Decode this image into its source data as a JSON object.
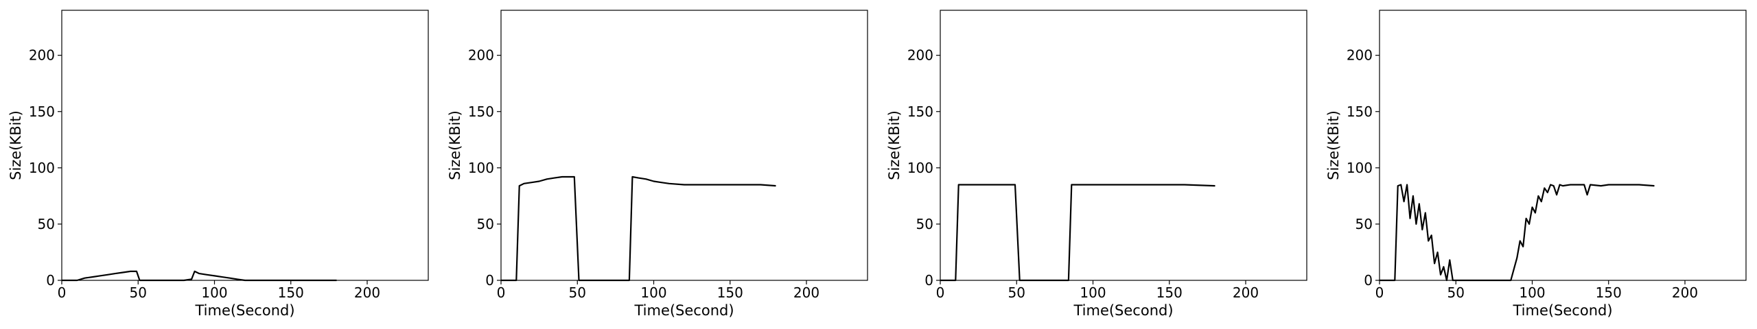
{
  "chart_data": [
    {
      "type": "line",
      "xlabel": "Time(Second)",
      "ylabel": "Size(KBit)",
      "xlim": [
        0,
        240
      ],
      "ylim": [
        0,
        240
      ],
      "xticks": [
        "0",
        "50",
        "100",
        "150",
        "200"
      ],
      "yticks": [
        "0",
        "50",
        "100",
        "150",
        "200"
      ],
      "grid": false,
      "series": [
        {
          "color": "#000000",
          "points": [
            [
              0,
              0
            ],
            [
              10,
              0
            ],
            [
              15,
              2
            ],
            [
              20,
              3
            ],
            [
              25,
              4
            ],
            [
              30,
              5
            ],
            [
              35,
              6
            ],
            [
              40,
              7
            ],
            [
              45,
              8
            ],
            [
              49,
              8
            ],
            [
              51,
              0
            ],
            [
              60,
              0
            ],
            [
              70,
              0
            ],
            [
              80,
              0
            ],
            [
              85,
              1
            ],
            [
              87,
              8
            ],
            [
              90,
              6
            ],
            [
              95,
              5
            ],
            [
              100,
              4
            ],
            [
              105,
              3
            ],
            [
              110,
              2
            ],
            [
              115,
              1
            ],
            [
              120,
              0
            ],
            [
              150,
              0
            ],
            [
              180,
              0
            ]
          ]
        }
      ]
    },
    {
      "type": "line",
      "xlabel": "Time(Second)",
      "ylabel": "Size(KBit)",
      "xlim": [
        0,
        240
      ],
      "ylim": [
        0,
        240
      ],
      "xticks": [
        "0",
        "50",
        "100",
        "150",
        "200"
      ],
      "yticks": [
        "0",
        "50",
        "100",
        "150",
        "200"
      ],
      "grid": false,
      "series": [
        {
          "color": "#000000",
          "points": [
            [
              0,
              0
            ],
            [
              10,
              0
            ],
            [
              12,
              84
            ],
            [
              15,
              86
            ],
            [
              20,
              87
            ],
            [
              25,
              88
            ],
            [
              30,
              90
            ],
            [
              35,
              91
            ],
            [
              40,
              92
            ],
            [
              45,
              92
            ],
            [
              48,
              92
            ],
            [
              51,
              0
            ],
            [
              60,
              0
            ],
            [
              70,
              0
            ],
            [
              80,
              0
            ],
            [
              84,
              0
            ],
            [
              86,
              92
            ],
            [
              90,
              91
            ],
            [
              95,
              90
            ],
            [
              100,
              88
            ],
            [
              105,
              87
            ],
            [
              110,
              86
            ],
            [
              120,
              85
            ],
            [
              130,
              85
            ],
            [
              140,
              85
            ],
            [
              150,
              85
            ],
            [
              160,
              85
            ],
            [
              170,
              85
            ],
            [
              180,
              84
            ]
          ]
        }
      ]
    },
    {
      "type": "line",
      "xlabel": "Time(Second)",
      "ylabel": "Size(KBit)",
      "xlim": [
        0,
        240
      ],
      "ylim": [
        0,
        240
      ],
      "xticks": [
        "0",
        "50",
        "100",
        "150",
        "200"
      ],
      "yticks": [
        "0",
        "50",
        "100",
        "150",
        "200"
      ],
      "grid": false,
      "series": [
        {
          "color": "#000000",
          "points": [
            [
              0,
              0
            ],
            [
              10,
              0
            ],
            [
              12,
              85
            ],
            [
              20,
              85
            ],
            [
              30,
              85
            ],
            [
              40,
              85
            ],
            [
              49,
              85
            ],
            [
              52,
              0
            ],
            [
              60,
              0
            ],
            [
              70,
              0
            ],
            [
              80,
              0
            ],
            [
              84,
              0
            ],
            [
              86,
              85
            ],
            [
              100,
              85
            ],
            [
              120,
              85
            ],
            [
              140,
              85
            ],
            [
              160,
              85
            ],
            [
              180,
              84
            ]
          ]
        }
      ]
    },
    {
      "type": "line",
      "xlabel": "Time(Second)",
      "ylabel": "Size(KBit)",
      "xlim": [
        0,
        240
      ],
      "ylim": [
        0,
        240
      ],
      "xticks": [
        "0",
        "50",
        "100",
        "150",
        "200"
      ],
      "yticks": [
        "0",
        "50",
        "100",
        "150",
        "200"
      ],
      "grid": false,
      "series": [
        {
          "color": "#000000",
          "points": [
            [
              0,
              0
            ],
            [
              10,
              0
            ],
            [
              12,
              84
            ],
            [
              14,
              85
            ],
            [
              16,
              70
            ],
            [
              18,
              85
            ],
            [
              20,
              55
            ],
            [
              22,
              75
            ],
            [
              24,
              50
            ],
            [
              26,
              68
            ],
            [
              28,
              45
            ],
            [
              30,
              60
            ],
            [
              32,
              35
            ],
            [
              34,
              40
            ],
            [
              36,
              15
            ],
            [
              38,
              25
            ],
            [
              40,
              5
            ],
            [
              42,
              12
            ],
            [
              44,
              0
            ],
            [
              46,
              18
            ],
            [
              48,
              0
            ],
            [
              60,
              0
            ],
            [
              70,
              0
            ],
            [
              80,
              0
            ],
            [
              86,
              0
            ],
            [
              88,
              10
            ],
            [
              90,
              20
            ],
            [
              92,
              35
            ],
            [
              94,
              30
            ],
            [
              96,
              55
            ],
            [
              98,
              50
            ],
            [
              100,
              65
            ],
            [
              102,
              60
            ],
            [
              104,
              75
            ],
            [
              106,
              70
            ],
            [
              108,
              82
            ],
            [
              110,
              78
            ],
            [
              112,
              85
            ],
            [
              114,
              84
            ],
            [
              116,
              76
            ],
            [
              118,
              85
            ],
            [
              120,
              84
            ],
            [
              125,
              85
            ],
            [
              130,
              85
            ],
            [
              134,
              85
            ],
            [
              136,
              76
            ],
            [
              138,
              85
            ],
            [
              145,
              84
            ],
            [
              150,
              85
            ],
            [
              160,
              85
            ],
            [
              170,
              85
            ],
            [
              180,
              84
            ]
          ]
        }
      ]
    }
  ]
}
